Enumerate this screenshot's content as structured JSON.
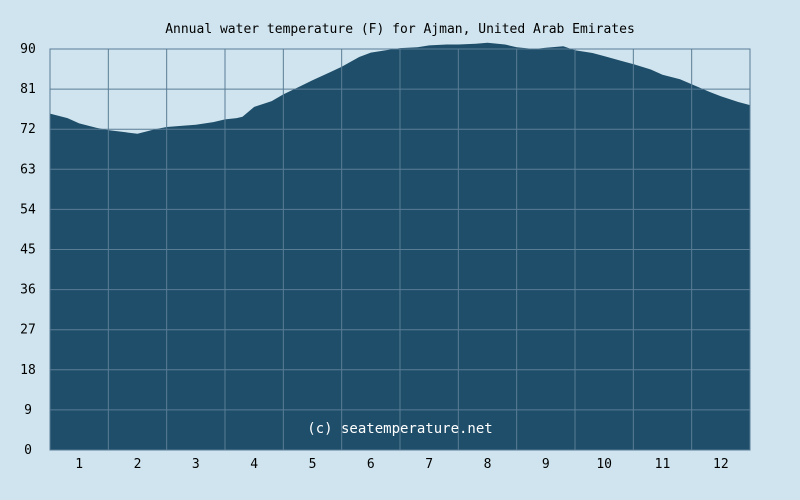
{
  "chart_data": {
    "type": "area",
    "title": "Annual water temperature (F) for Ajman, United Arab Emirates",
    "xlabel": "",
    "ylabel": "",
    "credit": "(c) seatemperature.net",
    "x_ticks": [
      "1",
      "2",
      "3",
      "4",
      "5",
      "6",
      "7",
      "8",
      "9",
      "10",
      "11",
      "12"
    ],
    "y_ticks": [
      "0",
      "9",
      "18",
      "27",
      "36",
      "45",
      "54",
      "63",
      "72",
      "81",
      "90"
    ],
    "xlim": [
      0.5,
      12.5
    ],
    "ylim": [
      0,
      90
    ],
    "grid": true,
    "colors": {
      "fill": "#1f4e6a",
      "background": "#cfe4ee",
      "grid": "#5a7d96",
      "credit": "#ffffff"
    },
    "series": [
      {
        "x": [
          0.5,
          0.8,
          1.0,
          1.3,
          1.5,
          1.8,
          2.0,
          2.3,
          2.5,
          2.8,
          3.0,
          3.3,
          3.5,
          3.7,
          3.8,
          4.0,
          4.3,
          4.5,
          4.8,
          5.0,
          5.3,
          5.5,
          5.8,
          6.0,
          6.3,
          6.5,
          6.8,
          7.0,
          7.3,
          7.5,
          7.8,
          8.0,
          8.3,
          8.5,
          8.8,
          9.0,
          9.3,
          9.5,
          9.8,
          10.0,
          10.3,
          10.5,
          10.8,
          11.0,
          11.3,
          11.5,
          11.8,
          12.0,
          12.3,
          12.5
        ],
        "values": [
          75.5,
          74.5,
          73.3,
          72.3,
          71.8,
          71.3,
          71.0,
          72.0,
          72.5,
          72.8,
          73.0,
          73.6,
          74.2,
          74.5,
          74.8,
          77.0,
          78.3,
          79.8,
          81.7,
          83.0,
          84.8,
          86.0,
          88.2,
          89.2,
          89.8,
          90.2,
          90.4,
          90.8,
          91.0,
          91.0,
          91.2,
          91.4,
          91.0,
          90.4,
          90.0,
          90.3,
          90.6,
          89.7,
          89.1,
          88.4,
          87.3,
          86.6,
          85.4,
          84.2,
          83.2,
          82.1,
          80.4,
          79.4,
          78.1,
          77.4
        ]
      }
    ]
  }
}
